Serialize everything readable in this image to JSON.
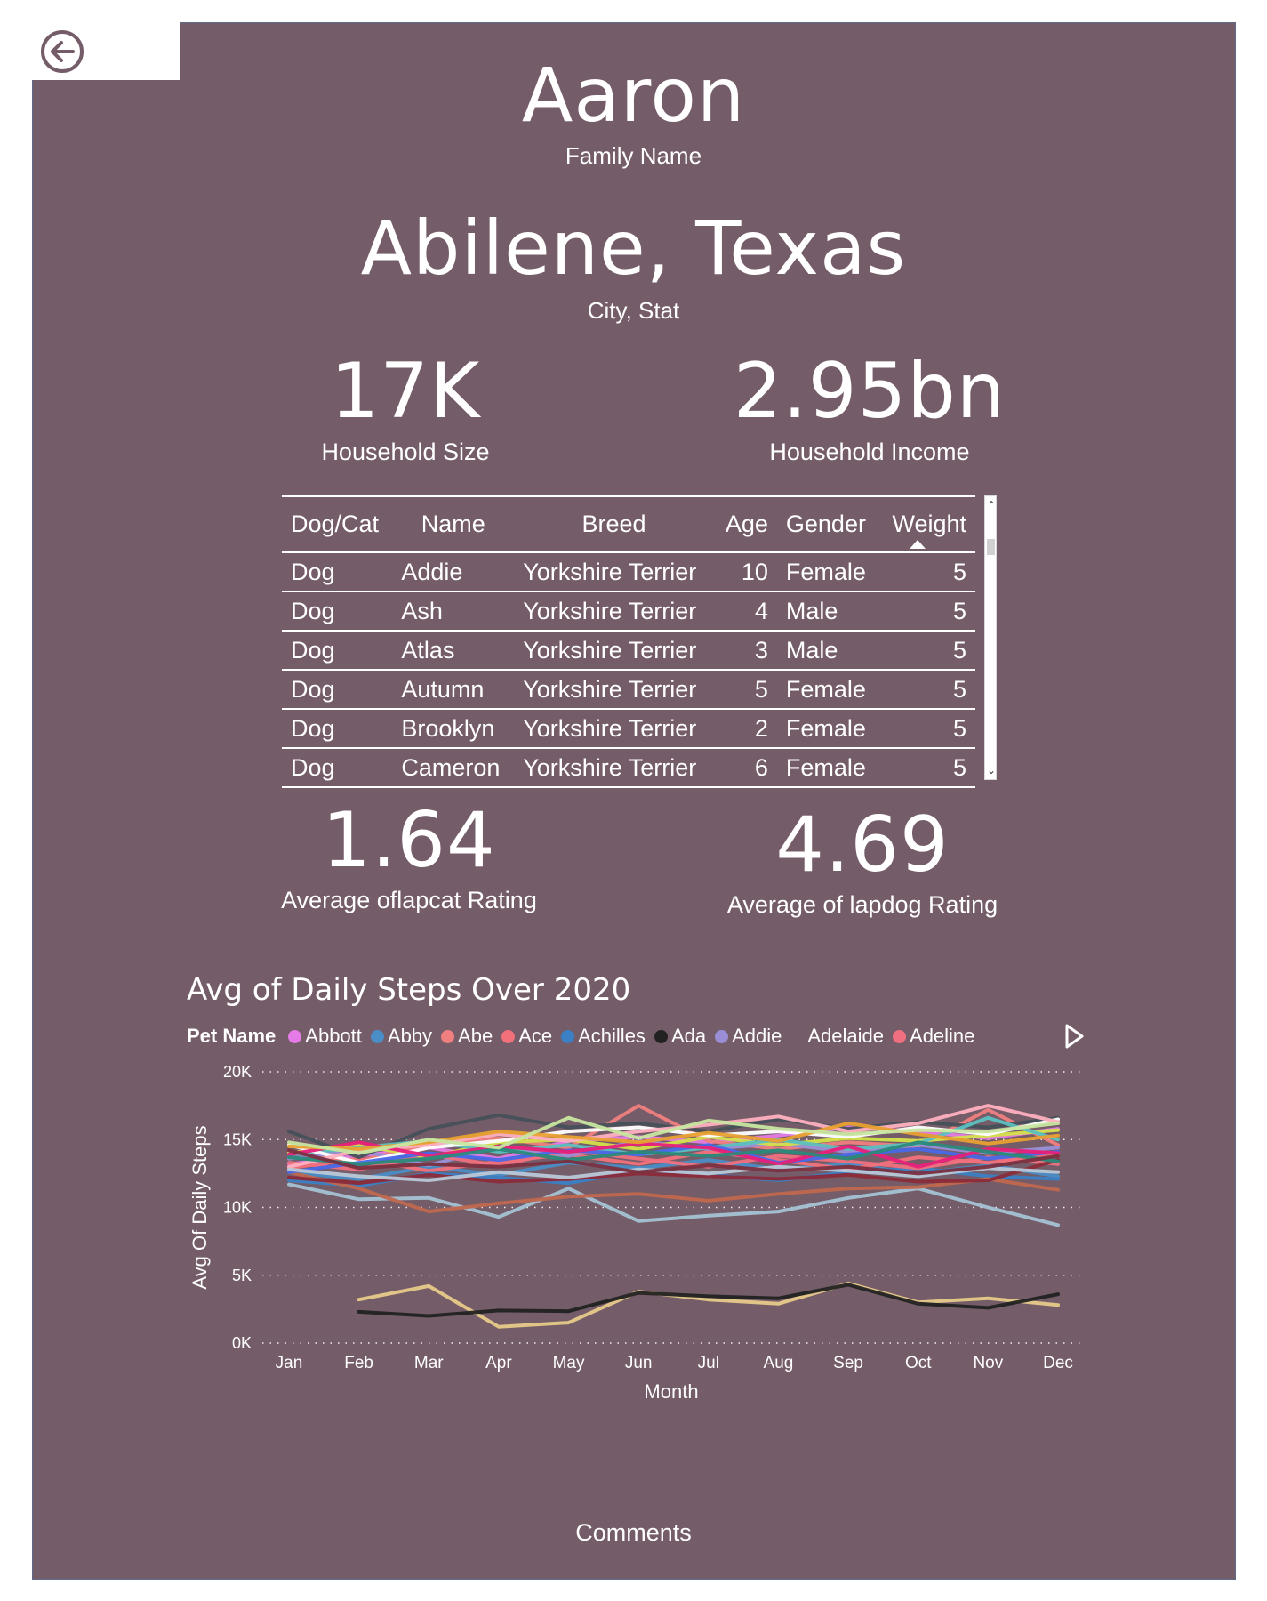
{
  "header": {
    "family_value": "Aaron",
    "family_label": "Family Name",
    "city_value": "Abilene, Texas",
    "city_label": "City, Stat"
  },
  "kpis": {
    "household_size_value": "17K",
    "household_size_label": "Household Size",
    "household_income_value": "2.95bn",
    "household_income_label": "Household Income",
    "lapcat_value": "1.64",
    "lapcat_label": "Average oflapcat  Rating",
    "lapdog_value": "4.69",
    "lapdog_label": "Average of lapdog Rating"
  },
  "table": {
    "columns": [
      "Dog/Cat",
      "Name",
      "Breed",
      "Age",
      "Gender",
      "Weight"
    ],
    "rows": [
      [
        "Dog",
        "Addie",
        "Yorkshire Terrier",
        "10",
        "Female",
        "5"
      ],
      [
        "Dog",
        "Ash",
        "Yorkshire Terrier",
        "4",
        "Male",
        "5"
      ],
      [
        "Dog",
        "Atlas",
        "Yorkshire Terrier",
        "3",
        "Male",
        "5"
      ],
      [
        "Dog",
        "Autumn",
        "Yorkshire Terrier",
        "5",
        "Female",
        "5"
      ],
      [
        "Dog",
        "Brooklyn",
        "Yorkshire Terrier",
        "2",
        "Female",
        "5"
      ],
      [
        "Dog",
        "Cameron",
        "Yorkshire Terrier",
        "6",
        "Female",
        "5"
      ]
    ],
    "sort_column": "Weight"
  },
  "comments_label": "Comments",
  "colors": {
    "background": "#745C68",
    "text": "#ffffff"
  },
  "icons": {
    "back": "back-arrow-icon",
    "legend_next": "chevron-right-icon"
  },
  "chart_data": {
    "type": "line",
    "title": "Avg of Daily Steps Over 2020",
    "xlabel": "Month",
    "ylabel": "Avg Of Daily Steps",
    "legend_title": "Pet Name",
    "legend_position": "top",
    "grid": true,
    "x": [
      "Jan",
      "Feb",
      "Mar",
      "Apr",
      "May",
      "Jun",
      "Jul",
      "Aug",
      "Sep",
      "Oct",
      "Nov",
      "Dec"
    ],
    "yticks": [
      "0K",
      "5K",
      "10K",
      "15K",
      "20K"
    ],
    "ylim": [
      0,
      20000
    ],
    "series": [
      {
        "name": "Abbott",
        "color": "#E57BE6",
        "values": [
          13200,
          13800,
          14400,
          13600,
          14900,
          15200,
          14800,
          15300,
          15900,
          15600,
          15100,
          15800
        ]
      },
      {
        "name": "Abby",
        "color": "#4A8DC7",
        "values": [
          12600,
          12100,
          13000,
          12400,
          13300,
          12900,
          13500,
          12800,
          13200,
          12500,
          13100,
          12300
        ]
      },
      {
        "name": "Abe",
        "color": "#F08080",
        "values": [
          14100,
          13400,
          14700,
          15100,
          14400,
          17500,
          14900,
          14300,
          14800,
          14500,
          17200,
          14600
        ]
      },
      {
        "name": "Ace",
        "color": "#F2707A",
        "values": [
          12900,
          13600,
          12700,
          13400,
          13900,
          13200,
          14100,
          13500,
          12800,
          13700,
          13300,
          13900
        ]
      },
      {
        "name": "Achilles",
        "color": "#3B7FC4",
        "values": [
          12000,
          11600,
          12500,
          12200,
          11800,
          12700,
          12400,
          12000,
          12600,
          12900,
          12300,
          12100
        ]
      },
      {
        "name": "Ada",
        "color": "#222222",
        "values": [
          null,
          2300,
          2000,
          2400,
          2350,
          3700,
          3450,
          3300,
          4300,
          2900,
          2600,
          3600
        ]
      },
      {
        "name": "Addie",
        "color": "#9A8FD6",
        "values": [
          13600,
          14200,
          13100,
          14500,
          13800,
          14900,
          14300,
          14700,
          14100,
          14600,
          14000,
          14400
        ]
      },
      {
        "name": "Adelaide",
        "color": "#E6C98A",
        "values": [
          null,
          3200,
          4200,
          1200,
          1500,
          3800,
          3200,
          2900,
          4400,
          3000,
          3300,
          2800
        ]
      },
      {
        "name": "Adeline",
        "color": "#F07080",
        "values": [
          13300,
          12800,
          13900,
          13100,
          14200,
          13600,
          13000,
          13800,
          13400,
          12900,
          13700,
          13200
        ]
      },
      {
        "name": "",
        "color": "#46505A",
        "values": [
          15600,
          13700,
          15800,
          16800,
          15900,
          16200,
          15600,
          16500,
          15800,
          16300,
          15900,
          16600
        ]
      },
      {
        "name": "",
        "color": "#A4C2D4",
        "values": [
          11700,
          10600,
          10700,
          9300,
          11400,
          9000,
          9400,
          9700,
          10700,
          11400,
          10000,
          8700
        ]
      },
      {
        "name": "",
        "color": "#C0674E",
        "values": [
          12600,
          11400,
          9700,
          10300,
          10800,
          11000,
          10500,
          11000,
          11400,
          11500,
          12100,
          11300
        ]
      },
      {
        "name": "",
        "color": "#8B2B3A",
        "values": [
          12200,
          11800,
          12400,
          11900,
          12100,
          12500,
          12300,
          12100,
          12400,
          11900,
          12000,
          13500
        ]
      },
      {
        "name": "",
        "color": "#D4E04A",
        "values": [
          14000,
          14600,
          13700,
          14800,
          15000,
          14300,
          15200,
          14600,
          15100,
          14900,
          15300,
          15700
        ]
      },
      {
        "name": "",
        "color": "#5BC0C0",
        "values": [
          13900,
          14400,
          14900,
          14100,
          14600,
          13900,
          14400,
          15000,
          14300,
          14700,
          16600,
          15000
        ]
      },
      {
        "name": "",
        "color": "#FFFFFF",
        "values": [
          14600,
          13300,
          14400,
          14900,
          15600,
          15900,
          15300,
          15600,
          15200,
          15900,
          15400,
          16500
        ]
      },
      {
        "name": "",
        "color": "#FFB0C0",
        "values": [
          13000,
          14200,
          14600,
          15400,
          14900,
          15600,
          16100,
          16700,
          15600,
          16200,
          17500,
          16300
        ]
      },
      {
        "name": "",
        "color": "#4868E8",
        "values": [
          12600,
          13300,
          14000,
          13500,
          14200,
          13900,
          14600,
          13300,
          13900,
          14300,
          13600,
          14100
        ]
      },
      {
        "name": "",
        "color": "#E8207A",
        "values": [
          13900,
          14800,
          13800,
          14500,
          14100,
          14700,
          14400,
          13200,
          14500,
          13000,
          14300,
          14000
        ]
      },
      {
        "name": "",
        "color": "#E8A030",
        "values": [
          14500,
          14300,
          14800,
          15600,
          15200,
          14800,
          15500,
          14900,
          16200,
          15400,
          14700,
          15300
        ]
      },
      {
        "name": "",
        "color": "#2A8A7A",
        "values": [
          13700,
          13200,
          13600,
          14300,
          13500,
          14100,
          13800,
          14200,
          13600,
          14800,
          14100,
          13400
        ]
      },
      {
        "name": "",
        "color": "#C8E6A0",
        "values": [
          14800,
          14000,
          15000,
          14400,
          16600,
          15100,
          16400,
          15800,
          15400,
          15700,
          15600,
          16200
        ]
      },
      {
        "name": "",
        "color": "#B8C8D8",
        "values": [
          12800,
          12300,
          12000,
          12600,
          12200,
          12800,
          12500,
          13000,
          12700,
          12300,
          12900,
          12600
        ]
      },
      {
        "name": "",
        "color": "#7A3040",
        "values": [
          14200,
          12900,
          13200,
          13000,
          13400,
          12600,
          13100,
          12700,
          13000,
          12500,
          13000,
          13800
        ]
      }
    ]
  }
}
